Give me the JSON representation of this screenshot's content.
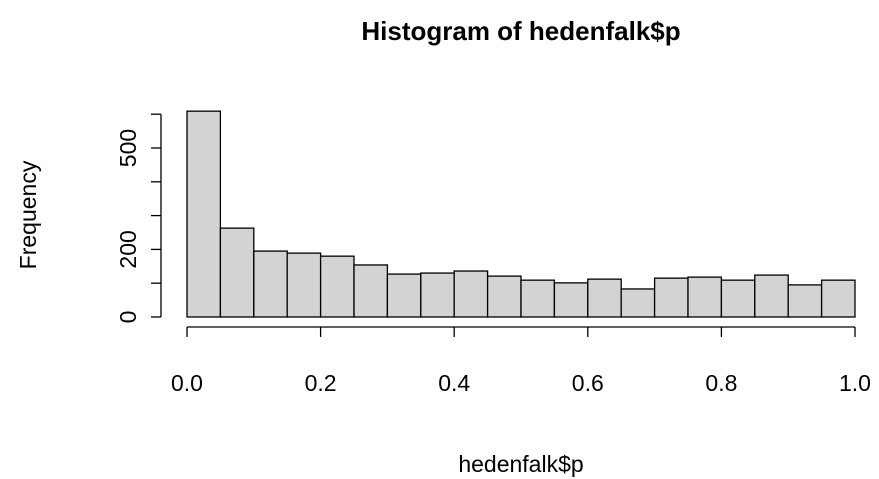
{
  "chart_data": {
    "type": "histogram",
    "title": "Histogram of hedenfalk$p",
    "x_label": "hedenfalk$p",
    "y_label": "Frequency",
    "bins": [
      0,
      0.05,
      0.1,
      0.15,
      0.2,
      0.25,
      0.3,
      0.35,
      0.4,
      0.45,
      0.5,
      0.55,
      0.6,
      0.65,
      0.7,
      0.75,
      0.8,
      0.85,
      0.9,
      0.95,
      1
    ],
    "values": [
      609,
      263,
      195,
      189,
      180,
      154,
      127,
      130,
      136,
      121,
      109,
      101,
      112,
      83,
      115,
      118,
      109,
      124,
      95,
      109
    ],
    "color": "#d3d3d3",
    "edge_color": "#000000",
    "xlim": [
      0,
      1
    ],
    "ylim": [
      0,
      630
    ],
    "xticks": [
      {
        "value": 0,
        "label": "0.0"
      },
      0.2,
      0.4,
      0.6,
      0.8,
      {
        "value": 1,
        "label": "1.0"
      }
    ],
    "yticks": [
      0,
      {
        "value": 100,
        "label": null
      },
      200,
      {
        "value": 300,
        "label": null
      },
      {
        "value": 400,
        "label": null
      },
      500,
      {
        "value": 600,
        "label": null
      }
    ],
    "grid": false
  }
}
